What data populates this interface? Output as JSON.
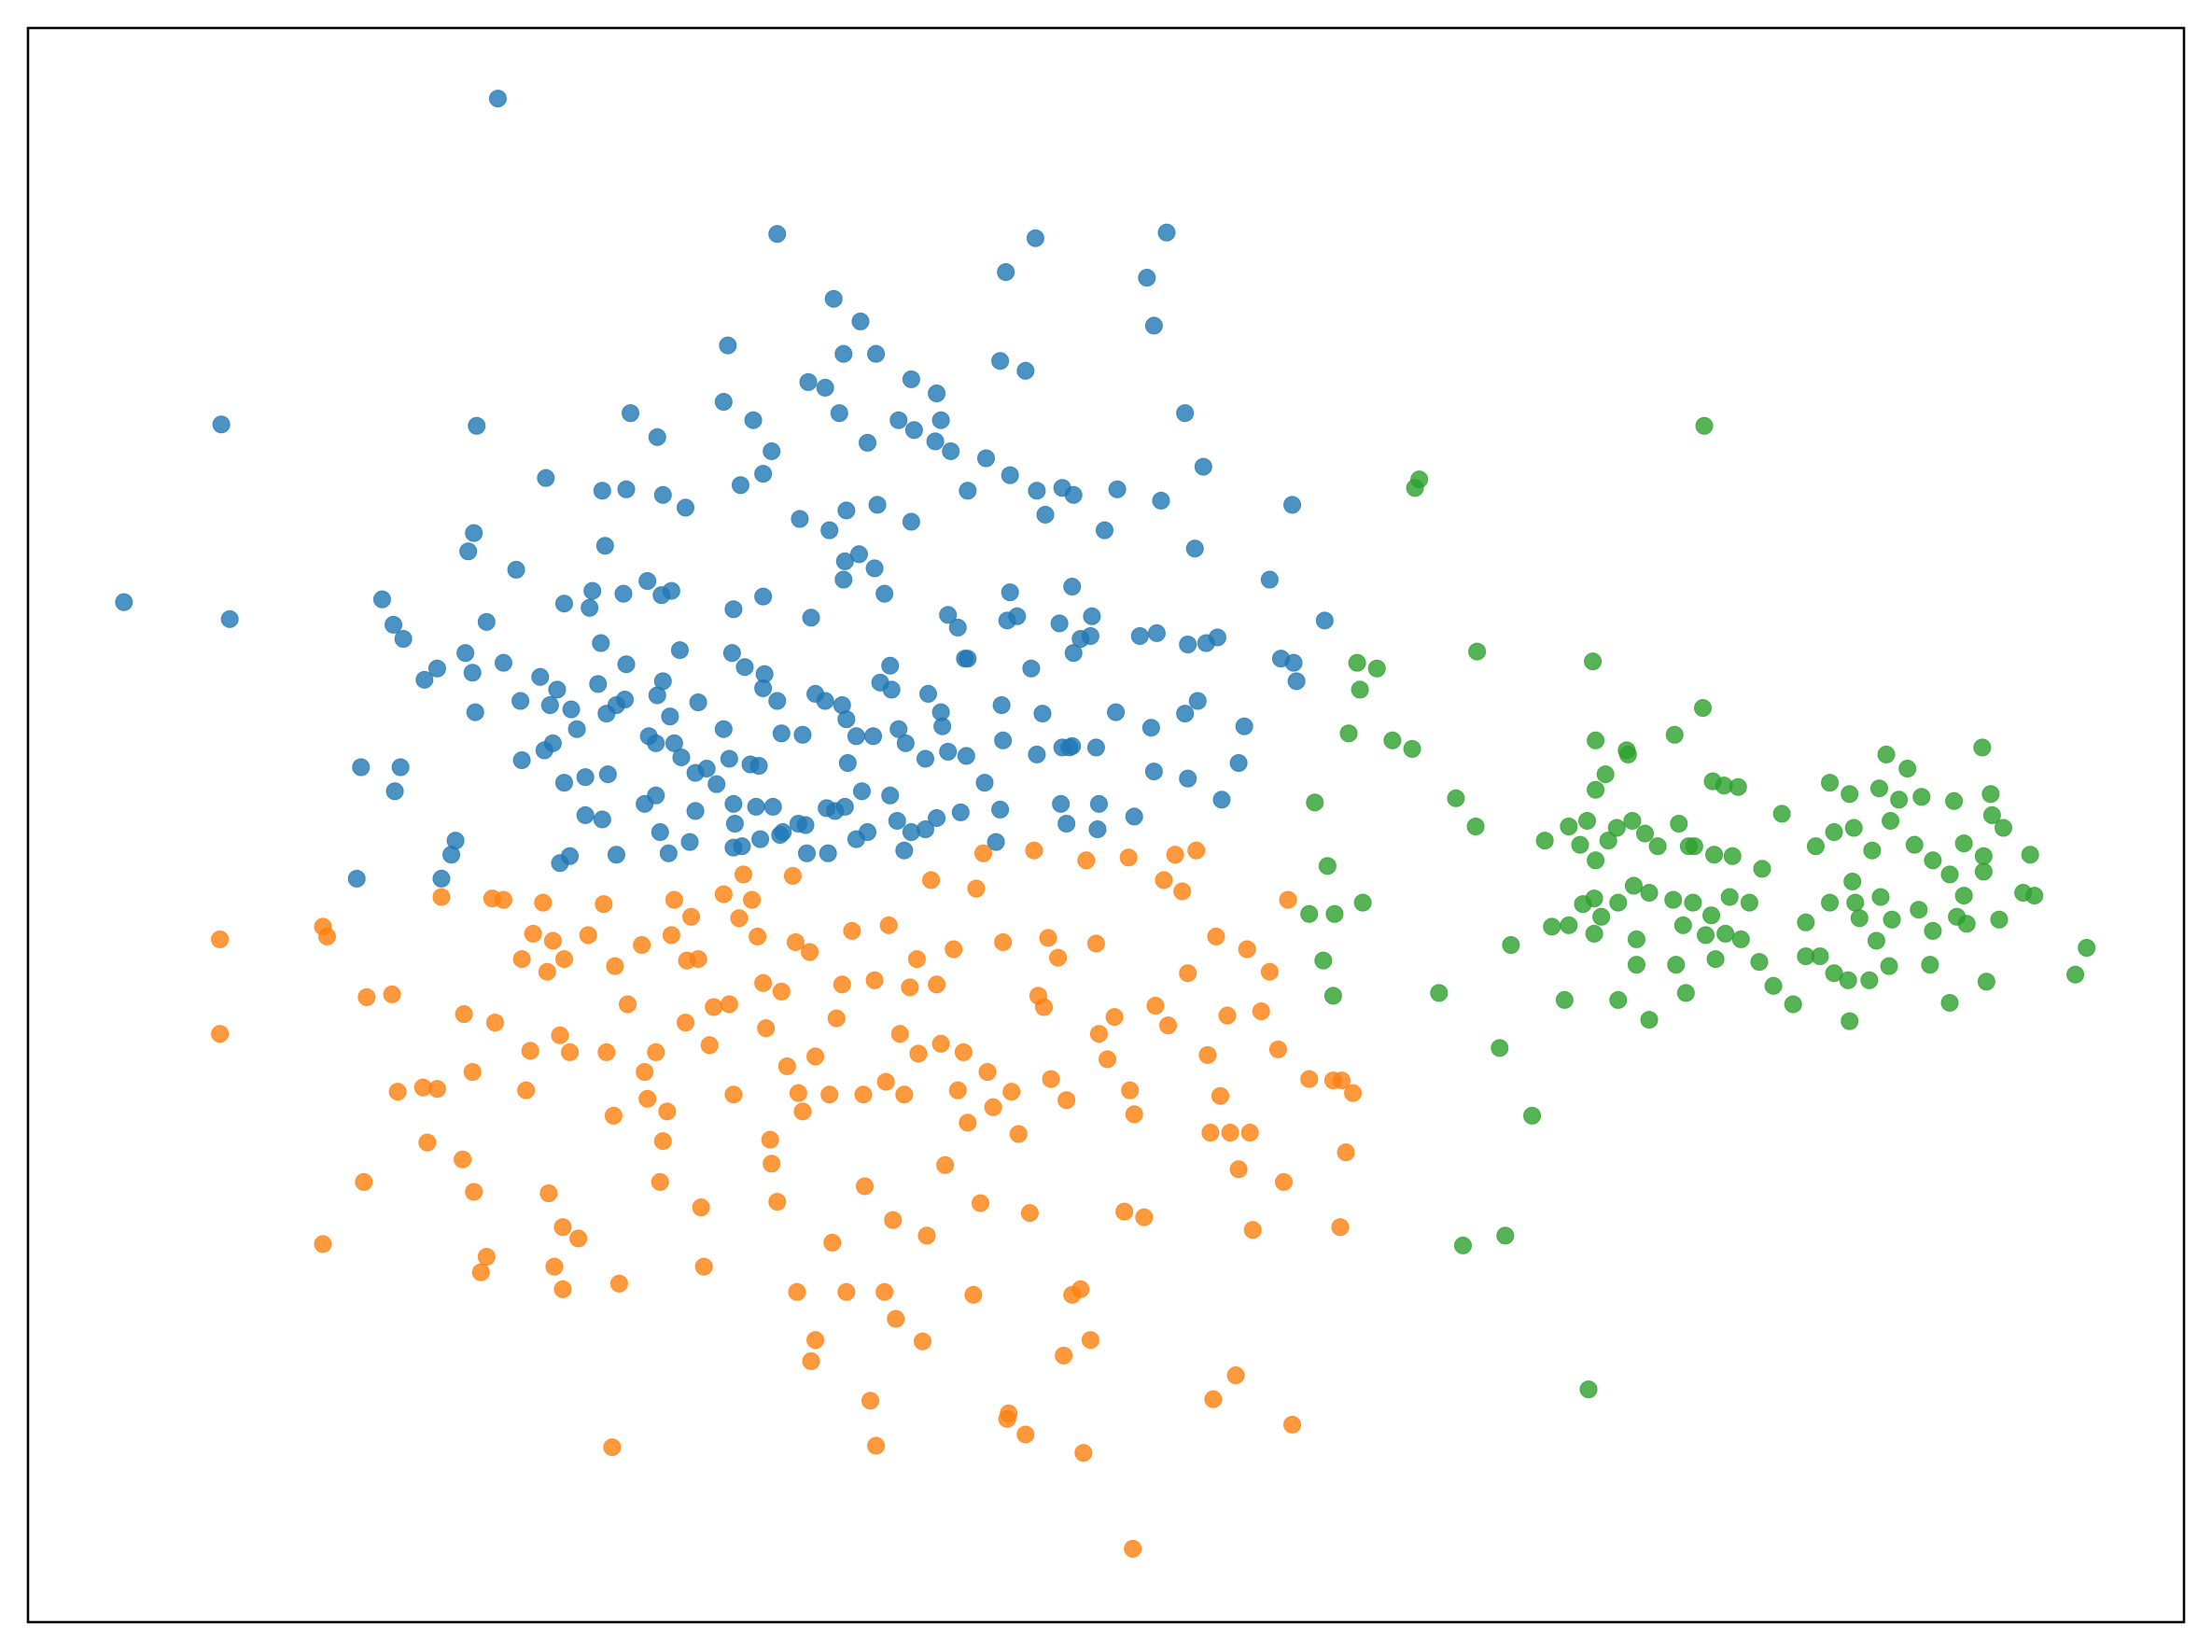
{
  "chart_data": {
    "type": "scatter",
    "xlim": [
      20,
      1548
    ],
    "ylim": [
      1150,
      20
    ],
    "marker_opacity": 0.8,
    "series": [
      {
        "color": "#1f77b4",
        "x": [
          353,
          551,
          734,
          827,
          713,
          813,
          591,
          610,
          818,
          516,
          598,
          621,
          709,
          727,
          573,
          585,
          646,
          664,
          157,
          338,
          447,
          513,
          534,
          595,
          637,
          648,
          667,
          840,
          466,
          547,
          615,
          663,
          674,
          699,
          853,
          387,
          427,
          444,
          470,
          486,
          525,
          541,
          686,
          716,
          735,
          753,
          761,
          792,
          823,
          916,
          336,
          332,
          366,
          429,
          567,
          588,
          600,
          622,
          646,
          741,
          783,
          847,
          609,
          599,
          620,
          88,
          163,
          271,
          279,
          286,
          345,
          400,
          418,
          420,
          442,
          459,
          469,
          476,
          520,
          541,
          575,
          598,
          627,
          672,
          679,
          714,
          716,
          721,
          751,
          760,
          774,
          808,
          820,
          842,
          863,
          900,
          939,
          330,
          357,
          301,
          310,
          335,
          383,
          426,
          444,
          482,
          519,
          528,
          542,
          631,
          684,
          686,
          731,
          761,
          766,
          773,
          855,
          908,
          917,
          919,
          256,
          284,
          280,
          337,
          369,
          390,
          395,
          405,
          409,
          424,
          430,
          437,
          443,
          466,
          470,
          475,
          495,
          513,
          541,
          551,
          585,
          578,
          597,
          600,
          607,
          624,
          632,
          658,
          667,
          668,
          710,
          739,
          753,
          760,
          791,
          816,
          840,
          849,
          882,
          370,
          386,
          392,
          400,
          415,
          431,
          460,
          465,
          478,
          483,
          493,
          501,
          517,
          532,
          538,
          554,
          569,
          601,
          619,
          637,
          642,
          656,
          672,
          685,
          711,
          735,
          758,
          777,
          818,
          842,
          878,
          415,
          427,
          457,
          465,
          468,
          474,
          489,
          493,
          508,
          520,
          521,
          526,
          536,
          548,
          555,
          566,
          571,
          586,
          592,
          599,
          611,
          615,
          631,
          636,
          646,
          656,
          664,
          681,
          698,
          709,
          752,
          756,
          779,
          804,
          866,
          253,
          313,
          320,
          323,
          397,
          404,
          437,
          520,
          539,
          553,
          572,
          587,
          607,
          641,
          706,
          778
        ],
        "y": [
          70,
          166,
          169,
          165,
          193,
          197,
          212,
          228,
          231,
          245,
          251,
          251,
          256,
          263,
          271,
          275,
          269,
          279,
          301,
          302,
          293,
          285,
          298,
          293,
          298,
          305,
          298,
          293,
          310,
          320,
          314,
          313,
          320,
          325,
          331,
          339,
          348,
          347,
          351,
          360,
          344,
          336,
          348,
          337,
          348,
          346,
          351,
          347,
          355,
          358,
          378,
          391,
          404,
          387,
          368,
          376,
          362,
          358,
          370,
          365,
          376,
          389,
          393,
          398,
          403,
          427,
          439,
          425,
          443,
          453,
          441,
          428,
          431,
          419,
          421,
          412,
          422,
          419,
          432,
          423,
          438,
          411,
          421,
          436,
          445,
          440,
          420,
          437,
          442,
          416,
          437,
          451,
          449,
          457,
          452,
          411,
          440,
          463,
          470,
          482,
          474,
          477,
          480,
          456,
          471,
          461,
          463,
          473,
          478,
          472,
          467,
          467,
          474,
          463,
          453,
          451,
          456,
          467,
          470,
          483,
          544,
          544,
          561,
          505,
          497,
          500,
          489,
          503,
          517,
          485,
          506,
          500,
          496,
          493,
          483,
          508,
          498,
          517,
          488,
          497,
          497,
          492,
          500,
          510,
          522,
          484,
          489,
          492,
          505,
          515,
          500,
          506,
          530,
          529,
          505,
          516,
          506,
          497,
          515,
          539,
          532,
          527,
          555,
          551,
          549,
          522,
          527,
          527,
          537,
          548,
          545,
          538,
          542,
          543,
          520,
          521,
          541,
          522,
          517,
          527,
          538,
          533,
          536,
          525,
          535,
          530,
          530,
          547,
          552,
          541,
          578,
          581,
          570,
          564,
          590,
          605,
          597,
          575,
          556,
          570,
          584,
          600,
          572,
          572,
          590,
          584,
          585,
          573,
          575,
          572,
          561,
          590,
          564,
          582,
          590,
          588,
          580,
          576,
          555,
          574,
          570,
          584,
          570,
          579,
          567,
          623,
          623,
          606,
          596,
          612,
          607,
          606,
          601,
          595,
          592,
          605,
          605,
          595,
          603,
          597,
          588
        ]
      },
      {
        "color": "#ff7f0e",
        "x": [
          156,
          156,
          229,
          232,
          229,
          258,
          260,
          278,
          300,
          310,
          282,
          303,
          313,
          329,
          328,
          335,
          336,
          345,
          341,
          349,
          351,
          357,
          370,
          373,
          378,
          376,
          385,
          388,
          392,
          400,
          397,
          404,
          389,
          393,
          399,
          399,
          410,
          417,
          428,
          430,
          435,
          436,
          439,
          434,
          445,
          455,
          457,
          459,
          465,
          470,
          468,
          473,
          476,
          478,
          486,
          487,
          490,
          495,
          497,
          499,
          503,
          506,
          513,
          517,
          520,
          524,
          527,
          533,
          537,
          541,
          543,
          546,
          547,
          551,
          554,
          558,
          562,
          564,
          566,
          565,
          569,
          574,
          578,
          575,
          578,
          588,
          590,
          593,
          597,
          600,
          604,
          612,
          613,
          617,
          620,
          621,
          627,
          628,
          630,
          633,
          635,
          638,
          641,
          645,
          650,
          651,
          654,
          657,
          660,
          664,
          667,
          670,
          676,
          679,
          683,
          686,
          690,
          692,
          695,
          697,
          700,
          704,
          711,
          714,
          715,
          717,
          722,
          727,
          730,
          733,
          736,
          740,
          743,
          745,
          750,
          754,
          756,
          760,
          766,
          768,
          770,
          773,
          777,
          779,
          785,
          790,
          797,
          800,
          801,
          803,
          804,
          811,
          819,
          825,
          828,
          833,
          838,
          842,
          848,
          856,
          858,
          860,
          862,
          865,
          870,
          872,
          876,
          878,
          884,
          886,
          888,
          894,
          900,
          906,
          910,
          913,
          916,
          928,
          945,
          950,
          954,
          959,
          951
        ],
        "y": [
          666,
          733,
          657,
          664,
          882,
          838,
          707,
          705,
          771,
          772,
          774,
          810,
          636,
          719,
          822,
          760,
          845,
          891,
          902,
          637,
          725,
          638,
          680,
          773,
          662,
          745,
          640,
          689,
          667,
          680,
          734,
          746,
          846,
          898,
          914,
          870,
          878,
          663,
          641,
          746,
          791,
          685,
          910,
          1026,
          712,
          670,
          760,
          779,
          746,
          809,
          838,
          788,
          663,
          638,
          725,
          681,
          650,
          680,
          856,
          898,
          741,
          714,
          634,
          712,
          776,
          651,
          620,
          638,
          664,
          697,
          729,
          808,
          825,
          852,
          703,
          756,
          621,
          668,
          775,
          916,
          788,
          675,
          749,
          965,
          950,
          776,
          881,
          722,
          698,
          916,
          660,
          776,
          841,
          993,
          695,
          1025,
          916,
          767,
          656,
          865,
          935,
          733,
          776,
          700,
          680,
          747,
          951,
          876,
          624,
          698,
          740,
          826,
          673,
          773,
          746,
          796,
          918,
          630,
          853,
          605,
          760,
          785,
          668,
          1006,
          1002,
          774,
          804,
          1017,
          860,
          603,
          706,
          714,
          665,
          765,
          679,
          961,
          780,
          918,
          914,
          1030,
          610,
          950,
          669,
          733,
          751,
          721,
          859,
          608,
          773,
          1098,
          790,
          863,
          713,
          624,
          727,
          606,
          632,
          690,
          603,
          748,
          803,
          992,
          664,
          777,
          720,
          803,
          975,
          829,
          673,
          803,
          872,
          717,
          689,
          744,
          838,
          638,
          1010,
          765,
          766,
          870,
          817,
          775,
          766
        ]
      },
      {
        "color": "#2ca02c",
        "x": [
          1208,
          1003,
          1006,
          962,
          976,
          964,
          956,
          987,
          1001,
          1047,
          1129,
          1207,
          1187,
          1131,
          1153,
          1154,
          1138,
          1131,
          1214,
          1222,
          1232,
          1263,
          1297,
          1337,
          1352,
          1405,
          1332,
          1311,
          1346,
          1362,
          1385,
          1411,
          1412,
          1032,
          932,
          1046,
          941,
          1095,
          1112,
          1120,
          1125,
          1131,
          1140,
          1146,
          1157,
          1166,
          1175,
          1190,
          1197,
          1201,
          1215,
          1228,
          1249,
          1287,
          1300,
          1314,
          1327,
          1340,
          1357,
          1370,
          1382,
          1392,
          1406,
          1420,
          1439,
          1434,
          1442,
          1406,
          928,
          946,
          966,
          1100,
          1112,
          1122,
          1130,
          1135,
          1147,
          1158,
          1169,
          1186,
          1200,
          1213,
          1226,
          1240,
          1280,
          1297,
          1315,
          1318,
          1333,
          1341,
          1360,
          1370,
          1387,
          1392,
          1417,
          1313,
          1071,
          1130,
          1160,
          1193,
          1209,
          1223,
          1234,
          1280,
          1290,
          1300,
          1330,
          1339,
          1368,
          1394,
          1479,
          1471,
          938,
          945,
          1020,
          1063,
          1109,
          1147,
          1169,
          1195,
          1216,
          1247,
          1257,
          1271,
          1310,
          1311,
          1325,
          1382,
          1408,
          1086,
          1037,
          1067,
          1126,
          1160,
          1188
        ],
        "y": [
          302,
          346,
          340,
          470,
          474,
          489,
          520,
          525,
          531,
          462,
          469,
          502,
          521,
          525,
          532,
          535,
          549,
          560,
          554,
          557,
          558,
          577,
          555,
          535,
          545,
          530,
          559,
          563,
          567,
          565,
          568,
          563,
          578,
          566,
          569,
          586,
          614,
          596,
          586,
          599,
          582,
          610,
          596,
          587,
          582,
          591,
          600,
          584,
          600,
          600,
          606,
          607,
          616,
          600,
          590,
          587,
          603,
          582,
          599,
          610,
          620,
          598,
          607,
          587,
          606,
          633,
          635,
          618,
          648,
          648,
          640,
          657,
          656,
          641,
          637,
          650,
          640,
          628,
          633,
          638,
          640,
          649,
          636,
          640,
          654,
          640,
          640,
          651,
          636,
          652,
          645,
          660,
          650,
          635,
          652,
          625,
          670,
          662,
          666,
          656,
          663,
          662,
          666,
          678,
          678,
          690,
          667,
          685,
          684,
          655,
          672,
          691,
          681,
          706,
          704,
          743,
          709,
          709,
          723,
          704,
          680,
          682,
          699,
          712,
          695,
          724,
          695,
          711,
          696,
          791,
          883,
          876,
          985,
          684,
          684
        ]
      }
    ]
  }
}
